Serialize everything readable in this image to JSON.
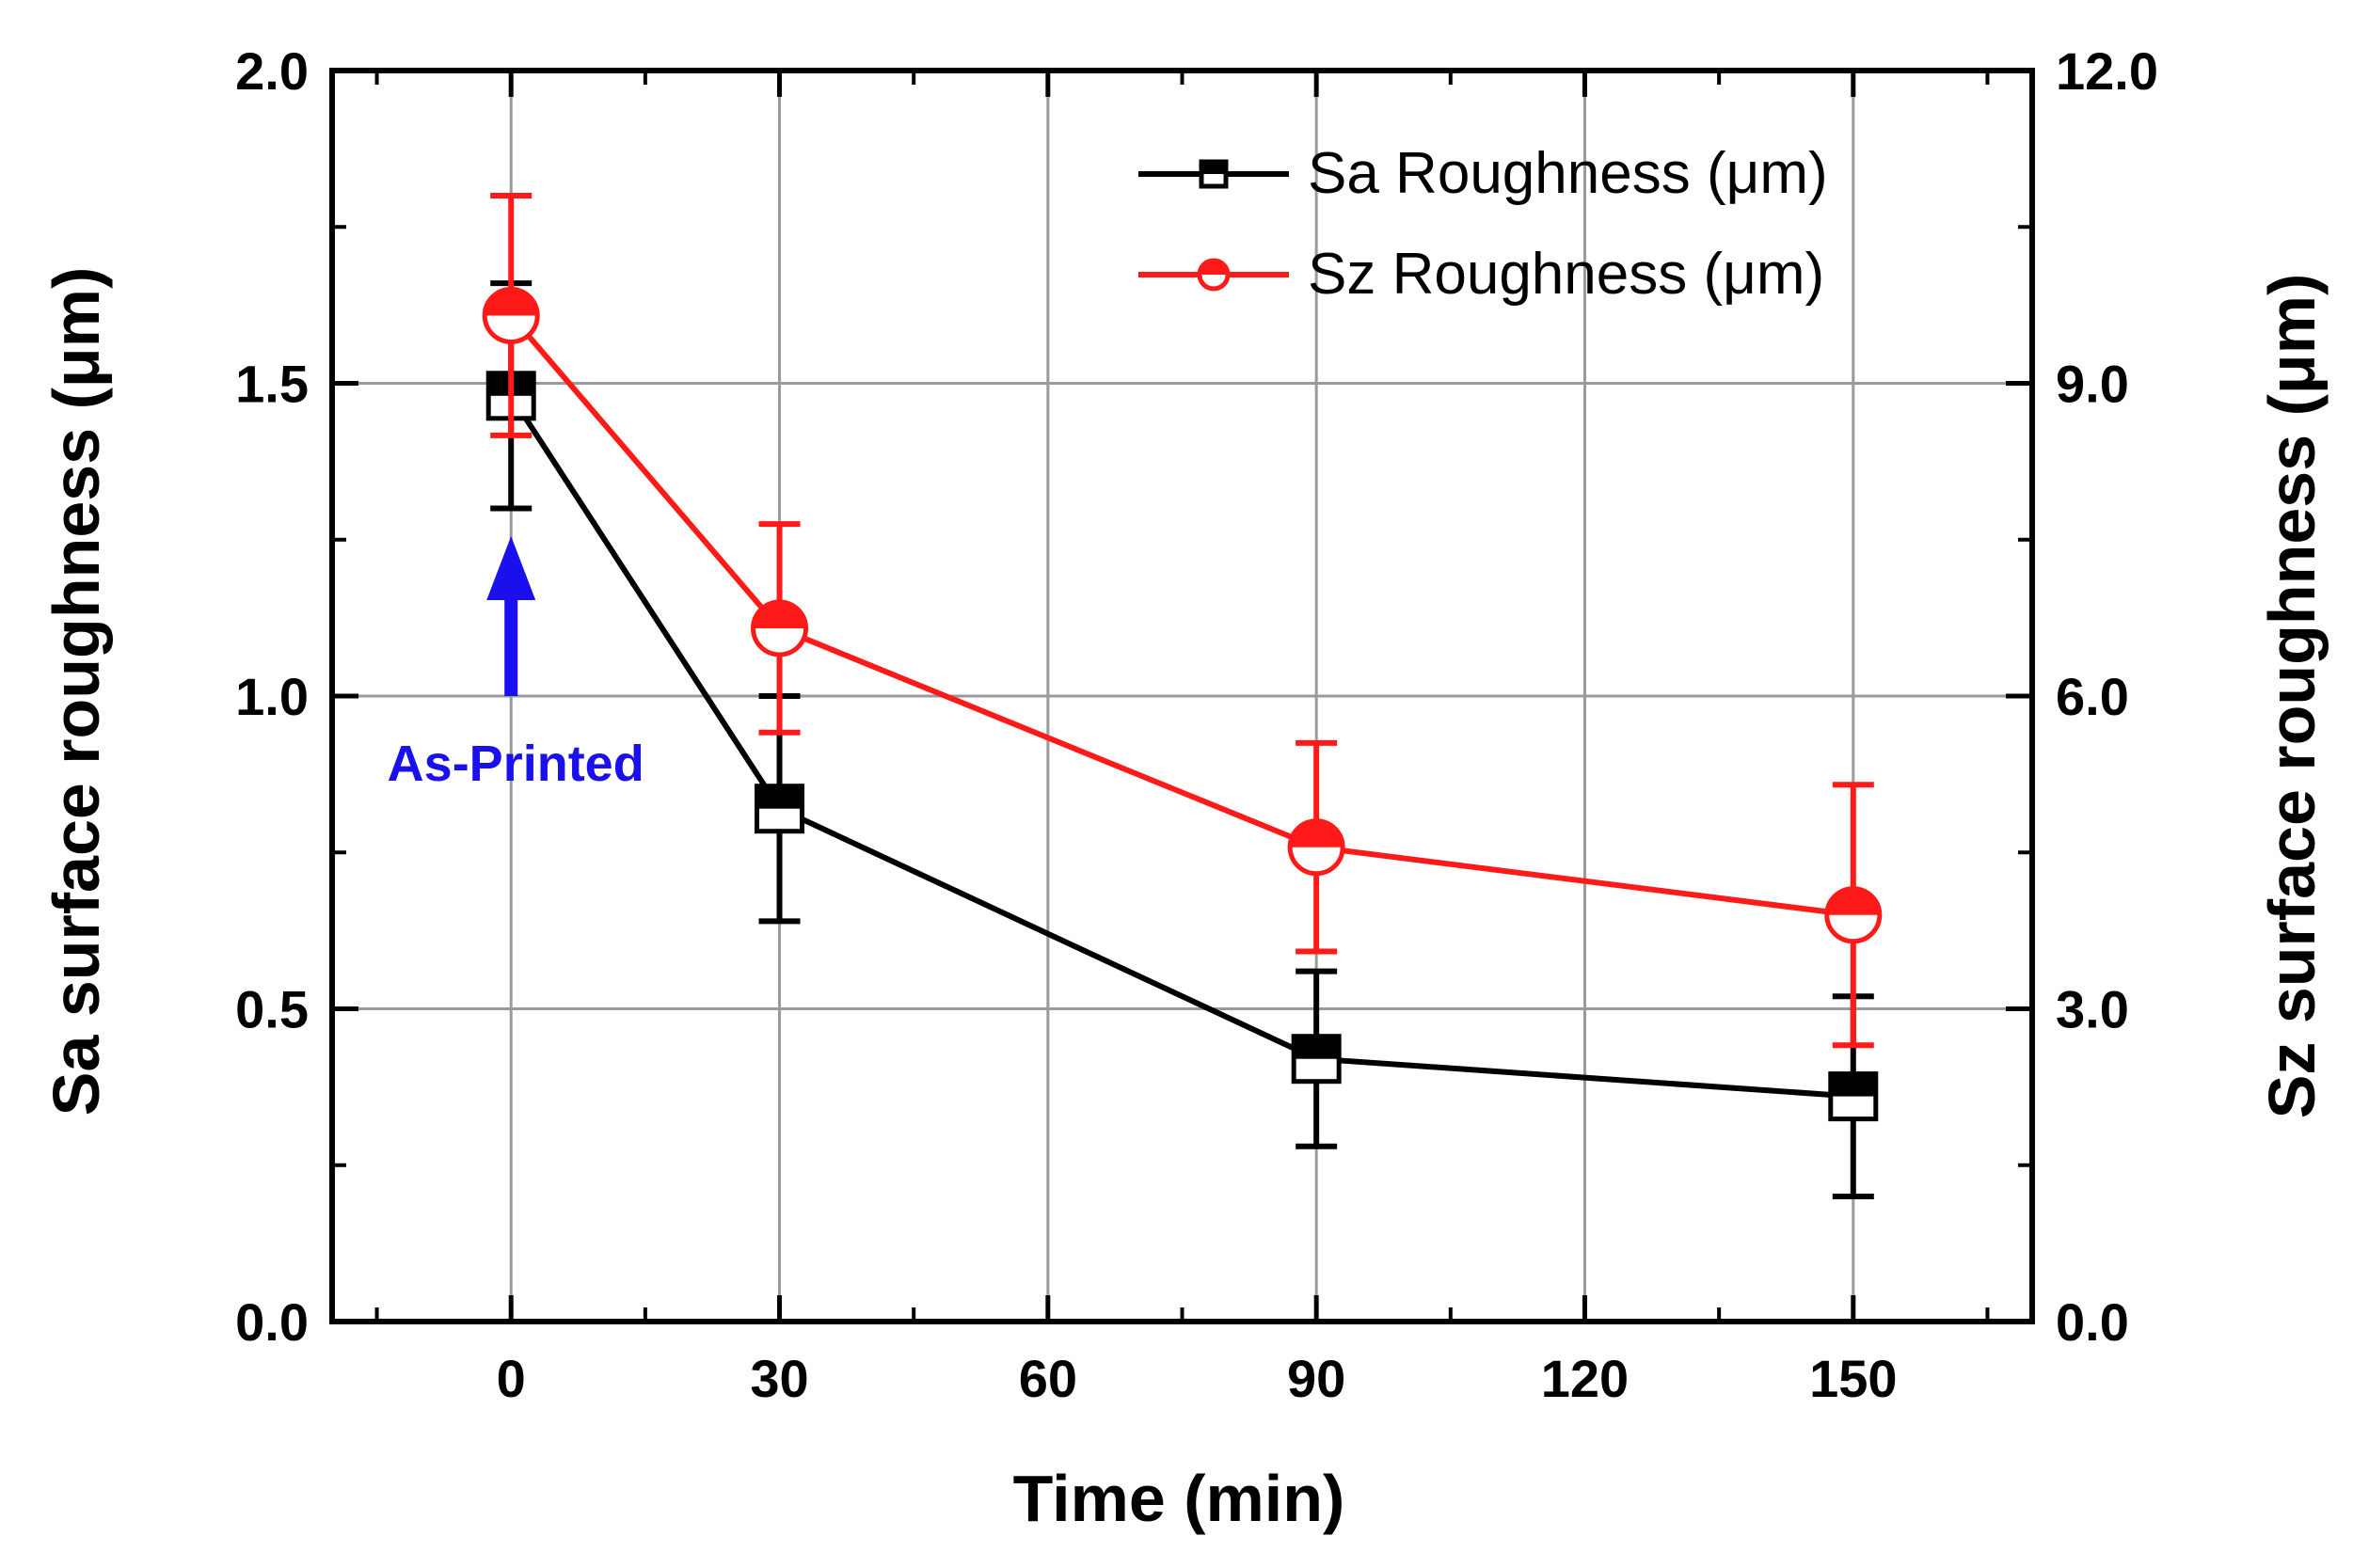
{
  "chart_data": {
    "type": "line",
    "x": [
      0,
      30,
      90,
      150
    ],
    "xlabel": "Time (min)",
    "ylabel": "Sa surface roughness (μm)",
    "ylabel_right": "Sz surface roughness (μm)",
    "xlim": [
      -20,
      170
    ],
    "ylim": [
      0,
      2.0
    ],
    "ylim_right": [
      0,
      12.0
    ],
    "grid": true,
    "legend_position": "top-right",
    "x_ticks": [
      "0",
      "30",
      "60",
      "90",
      "120",
      "150"
    ],
    "y_ticks": [
      "0.0",
      "0.5",
      "1.0",
      "1.5",
      "2.0"
    ],
    "y_ticks_right": [
      "0.0",
      "3.0",
      "6.0",
      "9.0",
      "12.0"
    ],
    "series": [
      {
        "name": "Sa Roughness (μm)",
        "axis": "left",
        "marker": "half-filled-square",
        "color": "#000000",
        "values": [
          1.48,
          0.82,
          0.42,
          0.36
        ],
        "error": [
          0.18,
          0.18,
          0.14,
          0.16
        ]
      },
      {
        "name": "Sz Roughness (μm)",
        "axis": "right",
        "marker": "half-filled-circle",
        "color": "#ff1a1a",
        "values": [
          9.65,
          6.65,
          4.55,
          3.9
        ],
        "error": [
          1.15,
          1.0,
          1.0,
          1.25
        ]
      }
    ],
    "annotations": [
      {
        "text": "As-Printed",
        "x": 0,
        "y": 1.0,
        "color": "#1a10ee",
        "arrow": "up"
      }
    ]
  }
}
